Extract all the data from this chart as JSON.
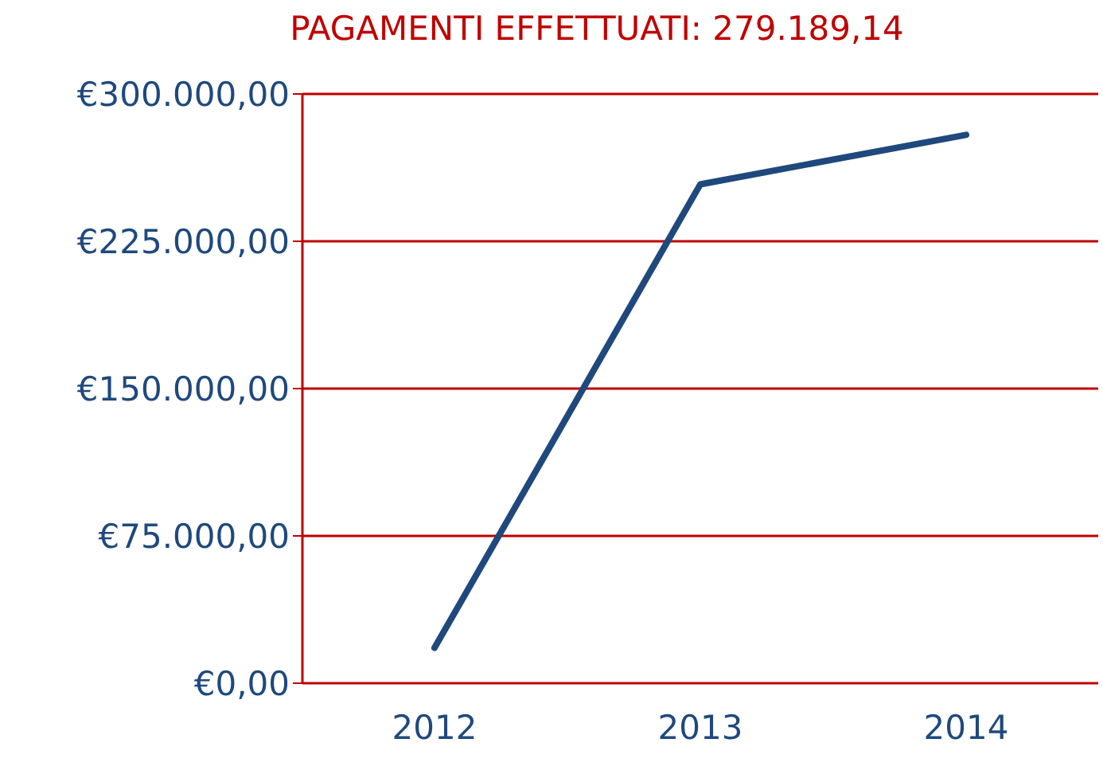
{
  "chart_data": {
    "type": "line",
    "title": "PAGAMENTI EFFETTUATI: 279.189,14",
    "categories": [
      "2012",
      "2013",
      "2014"
    ],
    "series": [
      {
        "color": "#1f497d",
        "values": [
          18000,
          254000,
          279189.14
        ]
      }
    ],
    "ylim": [
      0,
      300000
    ],
    "yticks": [
      {
        "value": 0,
        "label": "€0,00"
      },
      {
        "value": 75000,
        "label": "€75.000,00"
      },
      {
        "value": 150000,
        "label": "€150.000,00"
      },
      {
        "value": 225000,
        "label": "€225.000,00"
      },
      {
        "value": 300000,
        "label": "€300.000,00"
      }
    ],
    "grid": "y",
    "legend": false,
    "marker": "none",
    "line_style": "solid"
  }
}
